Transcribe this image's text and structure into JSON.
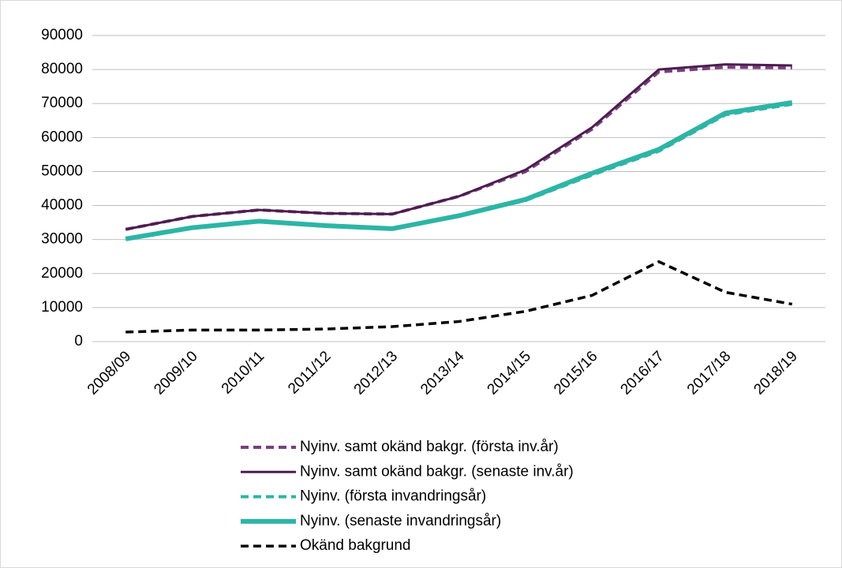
{
  "chart_data": {
    "type": "line",
    "categories": [
      "2008/09",
      "2009/10",
      "2010/11",
      "2011/12",
      "2012/13",
      "2013/14",
      "2014/15",
      "2015/16",
      "2016/17",
      "2017/18",
      "2018/19"
    ],
    "series": [
      {
        "name": "Nyinv. samt okänd bakgr. (första inv.år)",
        "color": "#7b3f7e",
        "dash": true,
        "values": [
          33000,
          36800,
          38700,
          37700,
          37500,
          42700,
          50000,
          62500,
          79300,
          80700,
          80500
        ]
      },
      {
        "name": "Nyinv. samt okänd bakgr. (senaste inv.år)",
        "color": "#4b1d4f",
        "dash": false,
        "values": [
          33000,
          36800,
          38700,
          37700,
          37500,
          42700,
          50500,
          63000,
          80000,
          81500,
          81200
        ]
      },
      {
        "name": "Nyinv. (första invandringsår)",
        "color": "#2cb5a5",
        "dash": true,
        "values": [
          30100,
          33400,
          35300,
          34000,
          33100,
          36900,
          41500,
          49000,
          56000,
          66700,
          69800
        ]
      },
      {
        "name": "Nyinv. (senaste invandringsår)",
        "color": "#2cb5a5",
        "dash": false,
        "values": [
          30200,
          33500,
          35400,
          34100,
          33200,
          37000,
          41800,
          49500,
          56500,
          67200,
          70300
        ]
      },
      {
        "name": "Okänd bakgrund",
        "color": "#000000",
        "dash": true,
        "values": [
          2800,
          3400,
          3400,
          3700,
          4400,
          5900,
          8900,
          13600,
          23500,
          14500,
          11000
        ]
      }
    ],
    "ylim": [
      0,
      90000
    ],
    "yticks": [
      0,
      10000,
      20000,
      30000,
      40000,
      50000,
      60000,
      70000,
      80000,
      90000
    ],
    "grid": true,
    "legend": "bottom"
  }
}
